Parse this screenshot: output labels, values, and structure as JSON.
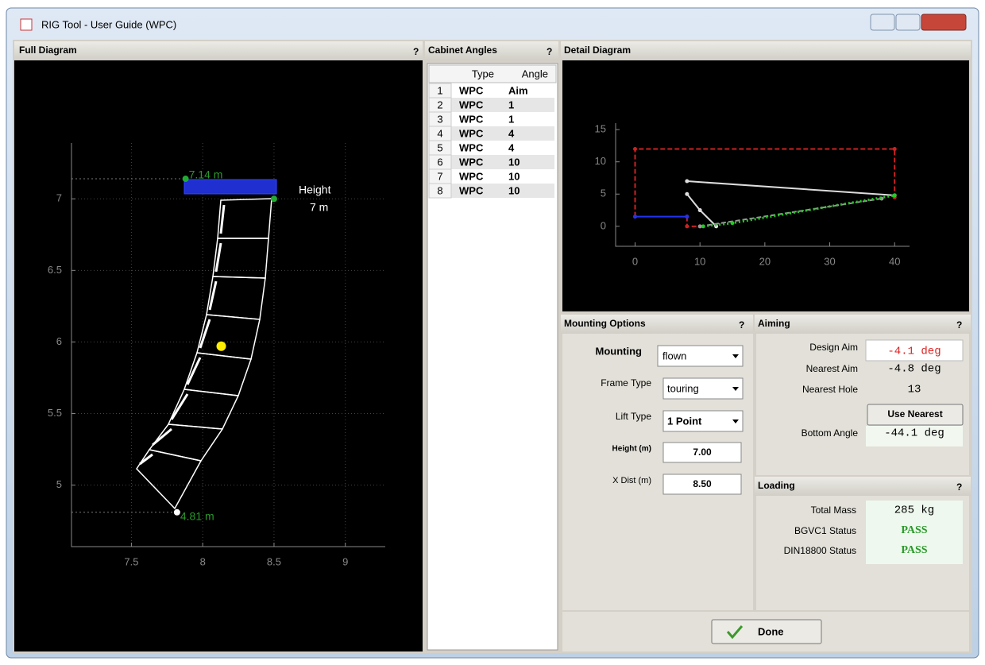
{
  "window": {
    "title": "RIG Tool - User Guide (WPC)"
  },
  "full_diagram": {
    "title": "Full Diagram",
    "help": "?",
    "xlim": [
      7.08,
      9.28
    ],
    "ylim": [
      4.57,
      7.39
    ],
    "xticks": [
      7.5,
      8,
      8.5,
      9
    ],
    "yticks": [
      5,
      5.5,
      6,
      6.5,
      7
    ],
    "grid": true,
    "points": [
      {
        "x": 7.88,
        "y": 7.14,
        "color": "#22aa33",
        "label": "7.14 m"
      },
      {
        "x": 8.5,
        "y": 7.0,
        "color": "#22aa33"
      },
      {
        "x": 8.13,
        "y": 5.97,
        "color": "#ffee00"
      },
      {
        "x": 7.82,
        "y": 4.81,
        "color": "#ffffff",
        "label": "4.81 m"
      }
    ],
    "height_label": "Height",
    "height_value": "7 m"
  },
  "cabinet_angles": {
    "title": "Cabinet Angles",
    "help": "?",
    "columns": [
      "Type",
      "Angle"
    ],
    "rows": [
      [
        1,
        "WPC",
        "Aim"
      ],
      [
        2,
        "WPC",
        1
      ],
      [
        3,
        "WPC",
        1
      ],
      [
        4,
        "WPC",
        4
      ],
      [
        5,
        "WPC",
        4
      ],
      [
        6,
        "WPC",
        10
      ],
      [
        7,
        "WPC",
        10
      ],
      [
        8,
        "WPC",
        10
      ]
    ]
  },
  "detail_diagram": {
    "title": "Detail Diagram",
    "xlim": [
      -3,
      42.3
    ],
    "ylim": [
      -3.1,
      16
    ],
    "xticks": [
      0,
      10,
      20,
      30,
      40
    ],
    "yticks": [
      0,
      5,
      10,
      15
    ],
    "grid": false,
    "lines": [
      {
        "color": "#cc2222",
        "style": "dashed",
        "x": [
          0,
          0,
          40,
          40
        ],
        "y": [
          1.5,
          12,
          12,
          4.5
        ]
      },
      {
        "color": "#cc2222",
        "style": "dashed",
        "x": [
          8,
          8,
          10
        ],
        "y": [
          1.5,
          0,
          0
        ]
      },
      {
        "color": "#2233ee",
        "style": "solid",
        "x": [
          0,
          8
        ],
        "y": [
          1.5,
          1.5
        ]
      },
      {
        "color": "#dddddd",
        "style": "solid",
        "x": [
          8,
          40
        ],
        "y": [
          7,
          4.8
        ]
      },
      {
        "color": "#dddddd",
        "style": "solid",
        "x": [
          8,
          10,
          12.5
        ],
        "y": [
          5,
          2.5,
          0
        ]
      },
      {
        "color": "#999999",
        "style": "dashed",
        "x": [
          10,
          38
        ],
        "y": [
          0,
          4.3
        ]
      },
      {
        "color": "#22cc22",
        "style": "dotted",
        "x": [
          10.5,
          15,
          40
        ],
        "y": [
          0,
          0.5,
          4.8
        ]
      }
    ]
  },
  "mounting_options": {
    "title": "Mounting Options",
    "help": "?",
    "mounting_label": "Mounting",
    "mounting": "flown",
    "frame_type_label": "Frame Type",
    "frame_type": "touring",
    "lift_type_label": "Lift Type",
    "lift_type": "1 Point",
    "height_label": "Height (m)",
    "height": "7.00",
    "xdist_label": "X Dist (m)",
    "xdist": "8.50"
  },
  "aiming": {
    "title": "Aiming",
    "help": "?",
    "design_aim_label": "Design Aim",
    "design_aim": "-4.1 deg",
    "nearest_aim_label": "Nearest Aim",
    "nearest_aim": "-4.8 deg",
    "nearest_hole_label": "Nearest Hole",
    "nearest_hole": "13",
    "use_nearest": "Use Nearest",
    "bottom_angle_label": "Bottom Angle",
    "bottom_angle": "-44.1 deg"
  },
  "loading": {
    "title": "Loading",
    "help": "?",
    "total_mass_label": "Total Mass",
    "total_mass": "285 kg",
    "bgvc1_label": "BGVC1 Status",
    "bgvc1": "PASS",
    "din_label": "DIN18800 Status",
    "din": "PASS"
  },
  "done": "Done"
}
